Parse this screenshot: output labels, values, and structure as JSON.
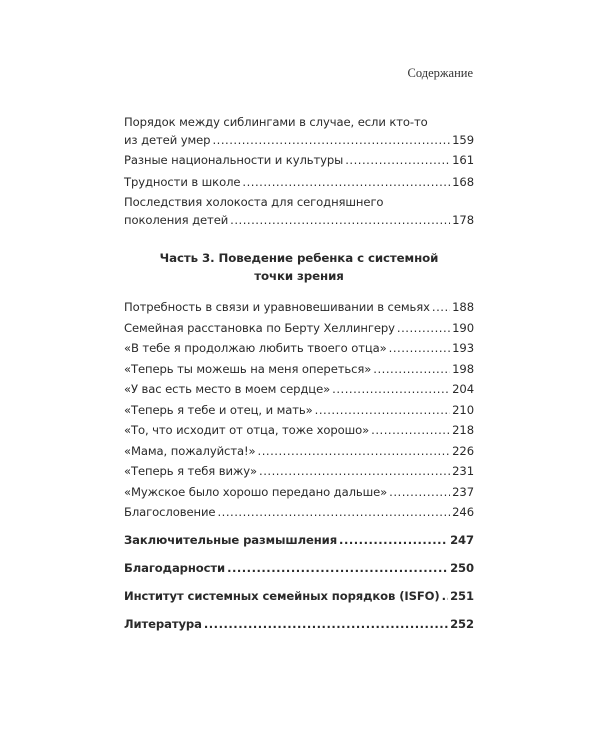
{
  "running_head": "Содержание",
  "entries_top": [
    {
      "title1": "Порядок между сиблингами в случае, если кто-то",
      "title2": "из детей умер",
      "page": "159"
    },
    {
      "title2": "Разные национальности и культуры",
      "page": "161"
    },
    {
      "title2": "Трудности в школе",
      "page": "168"
    },
    {
      "title1": "Последствия холокоста для сегодняшнего",
      "title2": "поколения детей",
      "page": "178"
    }
  ],
  "part": {
    "line1": "Часть 3. Поведение ребенка с системной",
    "line2": "точки зрения"
  },
  "entries_part": [
    {
      "title": "Потребность в связи и уравновешивании в семьях",
      "page": "188"
    },
    {
      "title": "Семейная расстановка по Берту Хеллингеру",
      "page": "190"
    },
    {
      "title": "«В тебе я продолжаю любить твоего отца»",
      "page": "193"
    },
    {
      "title": "«Теперь ты можешь на меня опереться»",
      "page": "198"
    },
    {
      "title": "«У вас есть место в моем сердце»",
      "page": "204"
    },
    {
      "title": "«Теперь я тебе и отец, и мать»",
      "page": "210"
    },
    {
      "title": "«То, что исходит от отца, тоже хорошо»",
      "page": "218"
    },
    {
      "title": "«Мама, пожалуйста!»",
      "page": "226"
    },
    {
      "title": "«Теперь я тебя вижу»",
      "page": "231"
    },
    {
      "title": "«Мужское было хорошо передано дальше»",
      "page": "237"
    },
    {
      "title": "Благословение",
      "page": "246"
    }
  ],
  "entries_bold": [
    {
      "title": "Заключительные размышления",
      "page": "247"
    },
    {
      "title": "Благодарности",
      "page": "250"
    },
    {
      "title": "Институт системных семейных порядков (ISFO)",
      "page": "251"
    },
    {
      "title": "Литература",
      "page": "252"
    }
  ]
}
